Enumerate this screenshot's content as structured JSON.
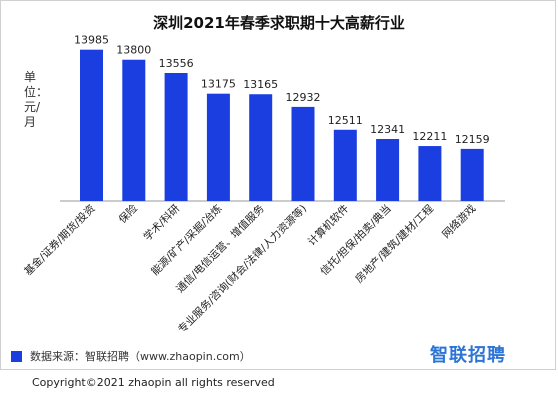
{
  "chart_data": {
    "type": "bar",
    "title": "深圳2021年春季求职期十大高薪行业",
    "ylabel": "单位：元/月",
    "xlabel": "",
    "categories": [
      "基金/证券/期货/投资",
      "保险",
      "学术/科研",
      "能源/矿产/采掘/冶炼",
      "通信/电信运营、增值服务",
      "专业服务/咨询(财会/法律/人力资源等)",
      "计算机软件",
      "信托/担保/拍卖/典当",
      "房地产/建筑/建材/工程",
      "网络游戏"
    ],
    "values": [
      13985,
      13800,
      13556,
      13175,
      13165,
      12932,
      12511,
      12341,
      12211,
      12159
    ],
    "ylim": [
      11200,
      14200
    ],
    "grid": false,
    "bar_color": "#1a3ee0"
  },
  "legend": {
    "source": "数据来源：智联招聘（www.zhaopin.com）"
  },
  "logo": {
    "text": "智联招聘",
    "color": "#2c74d6"
  },
  "footer": {
    "copyright": "Copyright©2021 zhaopin all rights reserved"
  }
}
